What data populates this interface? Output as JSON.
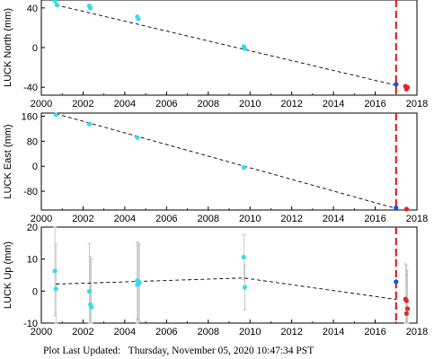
{
  "chart_data": [
    {
      "type": "scatter",
      "ylabel": "LUCK North (mm)",
      "xlim": [
        2000,
        2018
      ],
      "ylim": [
        -48,
        48
      ],
      "xticks": [
        2000,
        2002,
        2004,
        2006,
        2008,
        2010,
        2012,
        2014,
        2016,
        2018
      ],
      "yticks": [
        -40,
        0,
        40
      ],
      "trend": [
        [
          2000.7,
          43
        ],
        [
          2017.0,
          -38
        ]
      ],
      "event_line_x": 2017.0,
      "series": [
        {
          "color": "#33ddee",
          "points": [
            [
              2000.65,
              47
            ],
            [
              2000.75,
              43
            ],
            [
              2002.3,
              42
            ],
            [
              2002.35,
              40
            ],
            [
              2004.6,
              31
            ],
            [
              2004.65,
              29
            ],
            [
              2009.7,
              1
            ],
            [
              2009.75,
              -1
            ]
          ]
        },
        {
          "color": "#0055ff",
          "points": [
            [
              2017.0,
              -37
            ]
          ]
        },
        {
          "color": "#ee2222",
          "points": [
            [
              2017.45,
              -39
            ],
            [
              2017.5,
              -41
            ],
            [
              2017.55,
              -40
            ],
            [
              2017.5,
              -42
            ]
          ]
        }
      ]
    },
    {
      "type": "scatter",
      "ylabel": "LUCK East (mm)",
      "xlim": [
        2000,
        2018
      ],
      "ylim": [
        -140,
        170
      ],
      "xticks": [
        2000,
        2002,
        2004,
        2006,
        2008,
        2010,
        2012,
        2014,
        2016,
        2018
      ],
      "yticks": [
        -80,
        0,
        80,
        160
      ],
      "trend": [
        [
          2000.7,
          168
        ],
        [
          2017.0,
          -135
        ]
      ],
      "event_line_x": 2017.0,
      "series": [
        {
          "color": "#33ddee",
          "points": [
            [
              2000.7,
              165
            ],
            [
              2002.3,
              135
            ],
            [
              2004.6,
              92
            ],
            [
              2009.7,
              -4
            ]
          ]
        },
        {
          "color": "#0055ff",
          "points": [
            [
              2017.0,
              -133
            ]
          ]
        },
        {
          "color": "#ee2222",
          "points": [
            [
              2017.5,
              -142
            ]
          ]
        }
      ]
    },
    {
      "type": "scatter",
      "ylabel": "LUCK Up (mm)",
      "xlim": [
        2000,
        2018
      ],
      "ylim": [
        -10,
        20
      ],
      "xticks": [
        2000,
        2002,
        2004,
        2006,
        2008,
        2010,
        2012,
        2014,
        2016,
        2018
      ],
      "yticks": [
        -10,
        0,
        10,
        20
      ],
      "trend": [
        [
          2000.7,
          2.2
        ],
        [
          2002.3,
          2.5
        ],
        [
          2004.6,
          3.0
        ],
        [
          2009.7,
          4.1
        ],
        [
          2017.0,
          -2.6
        ]
      ],
      "event_line_x": 2017.0,
      "series": [
        {
          "color": "#33ddee",
          "points": [
            [
              2000.65,
              6.3
            ],
            [
              2000.7,
              0.7
            ],
            [
              2002.3,
              -0.1
            ],
            [
              2002.35,
              -4.2
            ],
            [
              2002.4,
              -5.0
            ],
            [
              2004.6,
              2.0
            ],
            [
              2004.65,
              3.0
            ],
            [
              2004.7,
              2.5
            ],
            [
              2004.6,
              3.3
            ],
            [
              2009.7,
              10.6
            ],
            [
              2009.75,
              1.2
            ]
          ],
          "err": [
            14,
            14,
            15,
            15,
            15,
            12,
            12,
            12,
            12,
            7,
            7
          ]
        },
        {
          "color": "#0055ff",
          "points": [
            [
              2017.0,
              2.9
            ]
          ],
          "err": [
            8
          ]
        },
        {
          "color": "#ee2222",
          "points": [
            [
              2017.45,
              -2.5
            ],
            [
              2017.5,
              -3.0
            ],
            [
              2017.55,
              -5.5
            ],
            [
              2017.5,
              -7.0
            ]
          ],
          "err": [
            11,
            11,
            12,
            12
          ]
        }
      ]
    }
  ],
  "footer": {
    "label": "Plot Last Updated:",
    "value": "Thursday, November 05, 2020 10:47:34 PST"
  },
  "colors": {
    "trend": "#000000",
    "event_line": "#dd1111",
    "error_bar": "#bbbbbb"
  }
}
